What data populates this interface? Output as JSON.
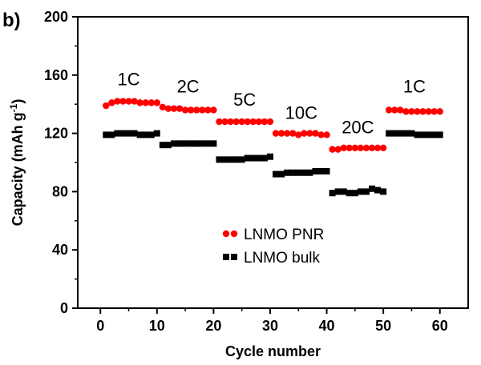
{
  "panel_label": "b)",
  "chart_data": {
    "type": "scatter",
    "xlabel": "Cycle number",
    "ylabel": "Capacity (mAh g",
    "ylabel_sup": "-1",
    "ylabel_close": ")",
    "xlim": [
      -4,
      65
    ],
    "ylim": [
      0,
      200
    ],
    "xticks": [
      0,
      10,
      20,
      30,
      40,
      50,
      60
    ],
    "yticks": [
      0,
      40,
      80,
      120,
      160,
      200
    ],
    "grid": false,
    "legend": "center",
    "series": [
      {
        "name": "LNMO PNR",
        "color": "#ff0000",
        "marker": "circle",
        "x": [
          1,
          2,
          3,
          4,
          5,
          6,
          7,
          8,
          9,
          10,
          11,
          12,
          13,
          14,
          15,
          16,
          17,
          18,
          19,
          20,
          21,
          22,
          23,
          24,
          25,
          26,
          27,
          28,
          29,
          30,
          31,
          32,
          33,
          34,
          35,
          36,
          37,
          38,
          39,
          40,
          41,
          42,
          43,
          44,
          45,
          46,
          47,
          48,
          49,
          50,
          51,
          52,
          53,
          54,
          55,
          56,
          57,
          58,
          59,
          60
        ],
        "y": [
          139,
          141,
          142,
          142,
          142,
          142,
          141,
          141,
          141,
          141,
          138,
          137,
          137,
          137,
          136,
          136,
          136,
          136,
          136,
          136,
          128,
          128,
          128,
          128,
          128,
          128,
          128,
          128,
          128,
          128,
          120,
          120,
          120,
          120,
          119,
          120,
          120,
          120,
          119,
          119,
          109,
          109,
          110,
          110,
          110,
          110,
          110,
          110,
          110,
          110,
          136,
          136,
          136,
          135,
          135,
          135,
          135,
          135,
          135,
          135
        ]
      },
      {
        "name": "LNMO bulk",
        "color": "#000000",
        "marker": "square",
        "x": [
          1,
          2,
          3,
          4,
          5,
          6,
          7,
          8,
          9,
          10,
          11,
          12,
          13,
          14,
          15,
          16,
          17,
          18,
          19,
          20,
          21,
          22,
          23,
          24,
          25,
          26,
          27,
          28,
          29,
          30,
          31,
          32,
          33,
          34,
          35,
          36,
          37,
          38,
          39,
          40,
          41,
          42,
          43,
          44,
          45,
          46,
          47,
          48,
          49,
          50,
          51,
          52,
          53,
          54,
          55,
          56,
          57,
          58,
          59,
          60
        ],
        "y": [
          119,
          119,
          120,
          120,
          120,
          120,
          119,
          119,
          119,
          120,
          112,
          112,
          113,
          113,
          113,
          113,
          113,
          113,
          113,
          113,
          102,
          102,
          102,
          102,
          102,
          103,
          103,
          103,
          103,
          104,
          92,
          92,
          93,
          93,
          93,
          93,
          93,
          94,
          94,
          94,
          79,
          80,
          80,
          79,
          79,
          80,
          80,
          82,
          81,
          80,
          120,
          120,
          120,
          120,
          120,
          119,
          119,
          119,
          119,
          119
        ]
      }
    ],
    "annotations": [
      {
        "text": "1C",
        "x": 5,
        "y": 153
      },
      {
        "text": "2C",
        "x": 15.5,
        "y": 148
      },
      {
        "text": "5C",
        "x": 25.5,
        "y": 139
      },
      {
        "text": "10C",
        "x": 35.5,
        "y": 130
      },
      {
        "text": "20C",
        "x": 45.5,
        "y": 120
      },
      {
        "text": "1C",
        "x": 55.5,
        "y": 148
      }
    ]
  }
}
